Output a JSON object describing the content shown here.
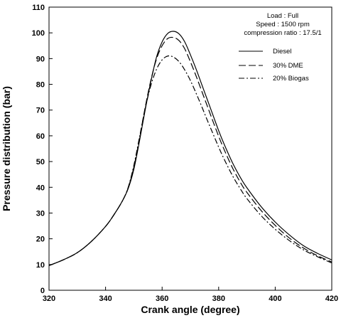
{
  "chart_data": {
    "type": "line",
    "xlabel": "Crank angle (degree)",
    "ylabel": "Pressure distribution (bar)",
    "xlim": [
      320,
      420
    ],
    "ylim": [
      0,
      110
    ],
    "xticks": [
      320,
      340,
      360,
      380,
      400,
      420
    ],
    "yticks": [
      0,
      10,
      20,
      30,
      40,
      50,
      60,
      70,
      80,
      90,
      100,
      110
    ],
    "grid": false,
    "legend_position": "top-right",
    "annotations": [
      "Load : Full",
      "Speed : 1500 rpm",
      "compression ratio : 17.5/1"
    ],
    "series": [
      {
        "name": "Diesel",
        "dash": "solid",
        "x": [
          320,
          325,
          330,
          335,
          340,
          343,
          346,
          348,
          350,
          352,
          354,
          356,
          358,
          360,
          362,
          364,
          366,
          368,
          370,
          372,
          374,
          376,
          378,
          380,
          382,
          385,
          388,
          390,
          395,
          400,
          405,
          410,
          415,
          420
        ],
        "y": [
          9.6,
          11.8,
          14.6,
          19.0,
          24.8,
          29.4,
          34.8,
          39.5,
          47.0,
          58.0,
          70.0,
          81.0,
          90.5,
          96.5,
          99.8,
          100.6,
          99.6,
          96.5,
          91.5,
          86.0,
          80.0,
          74.0,
          68.0,
          62.0,
          56.6,
          49.3,
          43.2,
          39.8,
          32.5,
          26.5,
          21.5,
          17.3,
          14.3,
          11.8
        ]
      },
      {
        "name": "30% DME",
        "dash": "dashed",
        "x": [
          320,
          325,
          330,
          335,
          340,
          343,
          346,
          348,
          350,
          352,
          354,
          356,
          358,
          360,
          362,
          364,
          366,
          368,
          370,
          372,
          374,
          376,
          378,
          380,
          382,
          385,
          388,
          390,
          395,
          400,
          405,
          410,
          415,
          420
        ],
        "y": [
          9.6,
          11.8,
          14.6,
          19.0,
          24.8,
          29.4,
          34.8,
          39.8,
          47.8,
          59.0,
          71.0,
          81.5,
          89.8,
          95.0,
          97.8,
          98.2,
          97.0,
          93.8,
          88.8,
          83.3,
          77.4,
          71.5,
          65.6,
          59.8,
          54.5,
          47.3,
          41.3,
          38.0,
          31.0,
          25.2,
          20.3,
          16.4,
          13.4,
          11.0
        ]
      },
      {
        "name": "20% Biogas",
        "dash": "dashdot",
        "x": [
          320,
          325,
          330,
          335,
          340,
          343,
          346,
          348,
          350,
          352,
          354,
          356,
          358,
          360,
          362,
          364,
          366,
          368,
          370,
          372,
          374,
          376,
          378,
          380,
          382,
          385,
          388,
          390,
          395,
          400,
          405,
          410,
          415,
          420
        ],
        "y": [
          9.6,
          11.8,
          14.6,
          19.0,
          24.8,
          29.4,
          34.8,
          40.0,
          48.5,
          59.5,
          70.5,
          79.5,
          85.8,
          89.5,
          91.0,
          90.6,
          88.8,
          85.6,
          81.5,
          76.6,
          71.4,
          66.0,
          60.8,
          55.6,
          50.8,
          44.3,
          38.8,
          35.6,
          29.0,
          23.7,
          19.3,
          15.7,
          13.0,
          10.6
        ]
      }
    ]
  },
  "colors": {
    "line": "#000000",
    "background": "#ffffff"
  }
}
